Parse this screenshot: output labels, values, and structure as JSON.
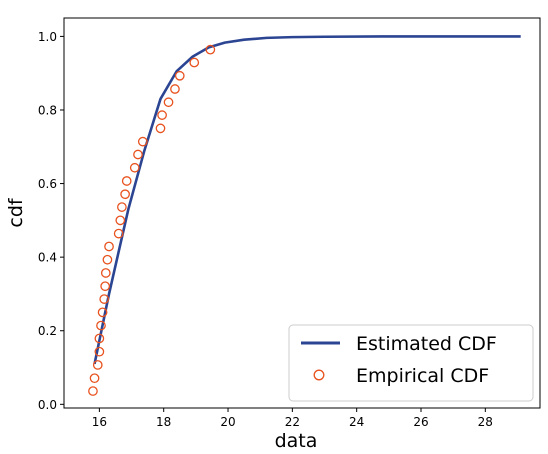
{
  "chart_data": {
    "type": "line",
    "xlabel": "data",
    "ylabel": "cdf",
    "xlim": [
      14.9,
      29.7
    ],
    "ylim": [
      -0.01,
      1.05
    ],
    "x_ticks": [
      16,
      18,
      20,
      22,
      24,
      26,
      28
    ],
    "y_ticks": [
      0.0,
      0.2,
      0.4,
      0.6,
      0.8,
      1.0
    ],
    "x_tick_labels": [
      "16",
      "18",
      "20",
      "22",
      "24",
      "26",
      "28"
    ],
    "y_tick_labels": [
      "0.0",
      "0.2",
      "0.4",
      "0.6",
      "0.8",
      "1.0"
    ],
    "grid": false,
    "legend_position": "lower-right",
    "series": [
      {
        "name": "Estimated CDF",
        "kind": "line",
        "color": "#2b4593",
        "x": [
          15.85,
          16.3,
          16.9,
          17.4,
          17.9,
          18.4,
          18.9,
          19.4,
          19.9,
          20.5,
          21.2,
          22.0,
          23.0,
          25.0,
          27.0,
          29.1
        ],
        "y": [
          0.11,
          0.3,
          0.53,
          0.69,
          0.83,
          0.905,
          0.945,
          0.97,
          0.983,
          0.991,
          0.996,
          0.998,
          0.999,
          1.0,
          1.0,
          1.0
        ]
      },
      {
        "name": "Empirical CDF",
        "kind": "scatter",
        "color": "#e8521e",
        "x": [
          15.8,
          15.85,
          15.95,
          16.0,
          16.0,
          16.05,
          16.1,
          16.15,
          16.18,
          16.2,
          16.25,
          16.3,
          16.6,
          16.65,
          16.7,
          16.8,
          16.85,
          17.1,
          17.2,
          17.35,
          17.9,
          17.95,
          18.15,
          18.35,
          18.5,
          18.95,
          19.45
        ],
        "y": [
          0.036,
          0.071,
          0.107,
          0.143,
          0.179,
          0.214,
          0.25,
          0.286,
          0.321,
          0.357,
          0.393,
          0.429,
          0.464,
          0.5,
          0.536,
          0.571,
          0.607,
          0.643,
          0.679,
          0.714,
          0.75,
          0.786,
          0.821,
          0.857,
          0.893,
          0.929,
          0.964
        ]
      }
    ]
  }
}
